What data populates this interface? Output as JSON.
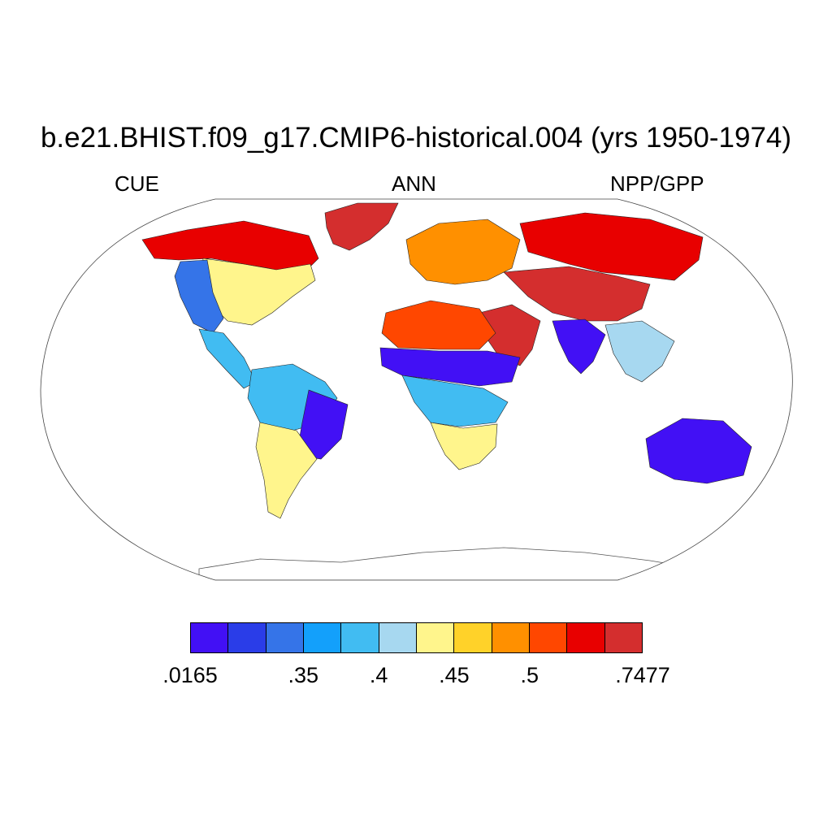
{
  "title": "b.e21.BHIST.f09_g17.CMIP6-historical.004 (yrs 1950-1974)",
  "left_string": "CUE",
  "center_string": "ANN",
  "right_string": "NPP/GPP",
  "map": {
    "projection": "Robinson",
    "background": "#ffffff",
    "ocean_fill": "#ffffff",
    "regions": [
      {
        "name": "north-america-boreal",
        "class": 10
      },
      {
        "name": "north-america-temperate",
        "class": 6
      },
      {
        "name": "north-america-central",
        "class": 2
      },
      {
        "name": "central-america",
        "class": 4
      },
      {
        "name": "amazon",
        "class": 4
      },
      {
        "name": "eastern-brazil",
        "class": 0
      },
      {
        "name": "southern-south-america",
        "class": 6
      },
      {
        "name": "greenland",
        "class": 11
      },
      {
        "name": "europe",
        "class": 8
      },
      {
        "name": "siberia",
        "class": 10
      },
      {
        "name": "central-asia",
        "class": 11
      },
      {
        "name": "middle-east",
        "class": 11
      },
      {
        "name": "sahara",
        "class": 9
      },
      {
        "name": "sahel",
        "class": 0
      },
      {
        "name": "central-africa",
        "class": 4
      },
      {
        "name": "southern-africa",
        "class": 6
      },
      {
        "name": "india",
        "class": 0
      },
      {
        "name": "southeast-asia",
        "class": 5
      },
      {
        "name": "australia",
        "class": 0
      },
      {
        "name": "antarctica",
        "class": null
      }
    ]
  },
  "colorbar": {
    "colors": [
      "#4210f5",
      "#2a3de8",
      "#3574e8",
      "#13a0fb",
      "#41bcf2",
      "#a7d8f0",
      "#fff58c",
      "#ffd229",
      "#ff9000",
      "#ff4700",
      "#e80000",
      "#d42e2e"
    ],
    "labels": [
      {
        "text": ".0165",
        "boundary": 0
      },
      {
        "text": ".35",
        "boundary": 3
      },
      {
        "text": ".4",
        "boundary": 5
      },
      {
        "text": ".45",
        "boundary": 7
      },
      {
        "text": ".5",
        "boundary": 9
      },
      {
        "text": ".7477",
        "boundary": 12
      }
    ]
  }
}
